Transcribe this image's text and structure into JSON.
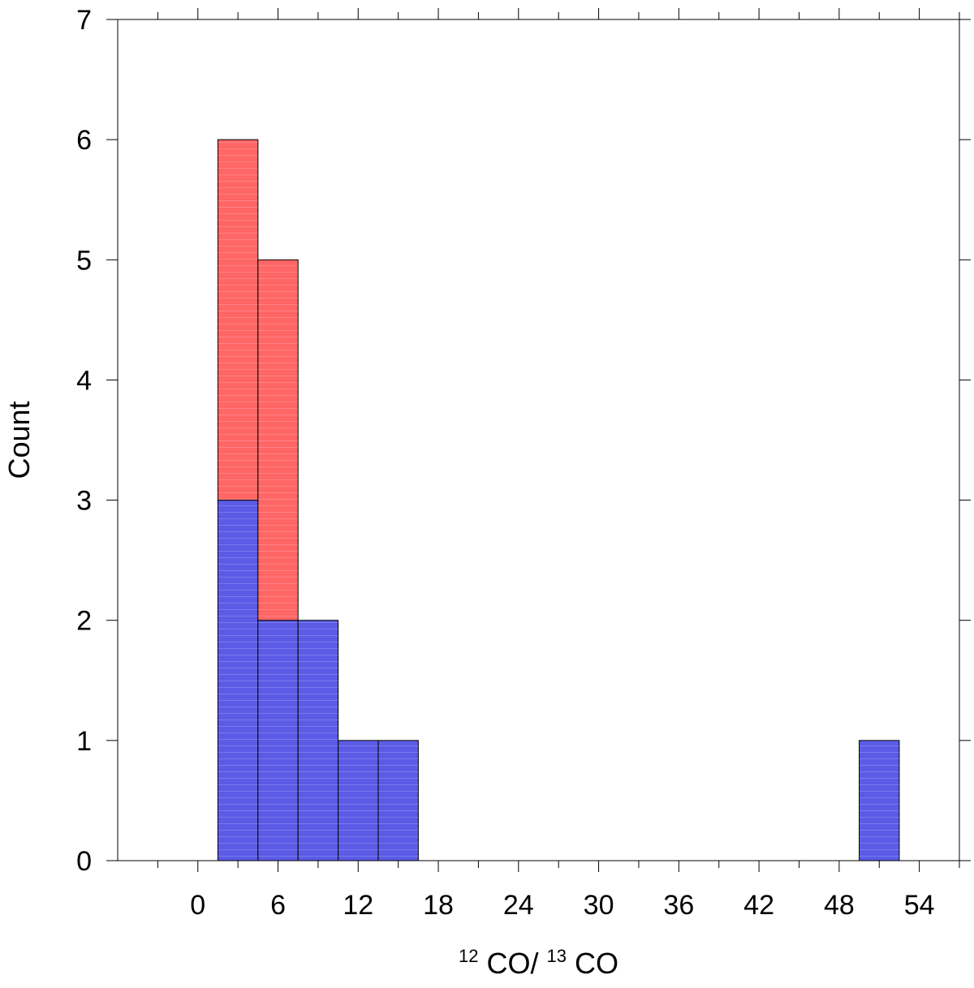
{
  "chart_data": {
    "type": "bar",
    "stacked": true,
    "xlabel": "CO/CO",
    "xlabel_superscripts": [
      "12",
      "13"
    ],
    "ylabel": "Count",
    "xlim": [
      -6,
      57
    ],
    "ylim": [
      0,
      7
    ],
    "x_ticks": [
      0,
      6,
      12,
      18,
      24,
      30,
      36,
      42,
      48,
      54
    ],
    "y_ticks": [
      0,
      1,
      2,
      3,
      4,
      5,
      6,
      7
    ],
    "bin_width": 3,
    "bins": [
      {
        "x0": 1.5,
        "x1": 4.5
      },
      {
        "x0": 4.5,
        "x1": 7.5
      },
      {
        "x0": 7.5,
        "x1": 10.5
      },
      {
        "x0": 10.5,
        "x1": 13.5
      },
      {
        "x0": 13.5,
        "x1": 16.5
      },
      {
        "x0": 49.5,
        "x1": 52.5
      }
    ],
    "series": [
      {
        "color": "#5b5be6",
        "values": [
          3,
          2,
          2,
          1,
          1,
          1
        ]
      },
      {
        "color": "#ff6666",
        "values": [
          3,
          3,
          0,
          0,
          0,
          0
        ]
      }
    ],
    "grid": false
  }
}
